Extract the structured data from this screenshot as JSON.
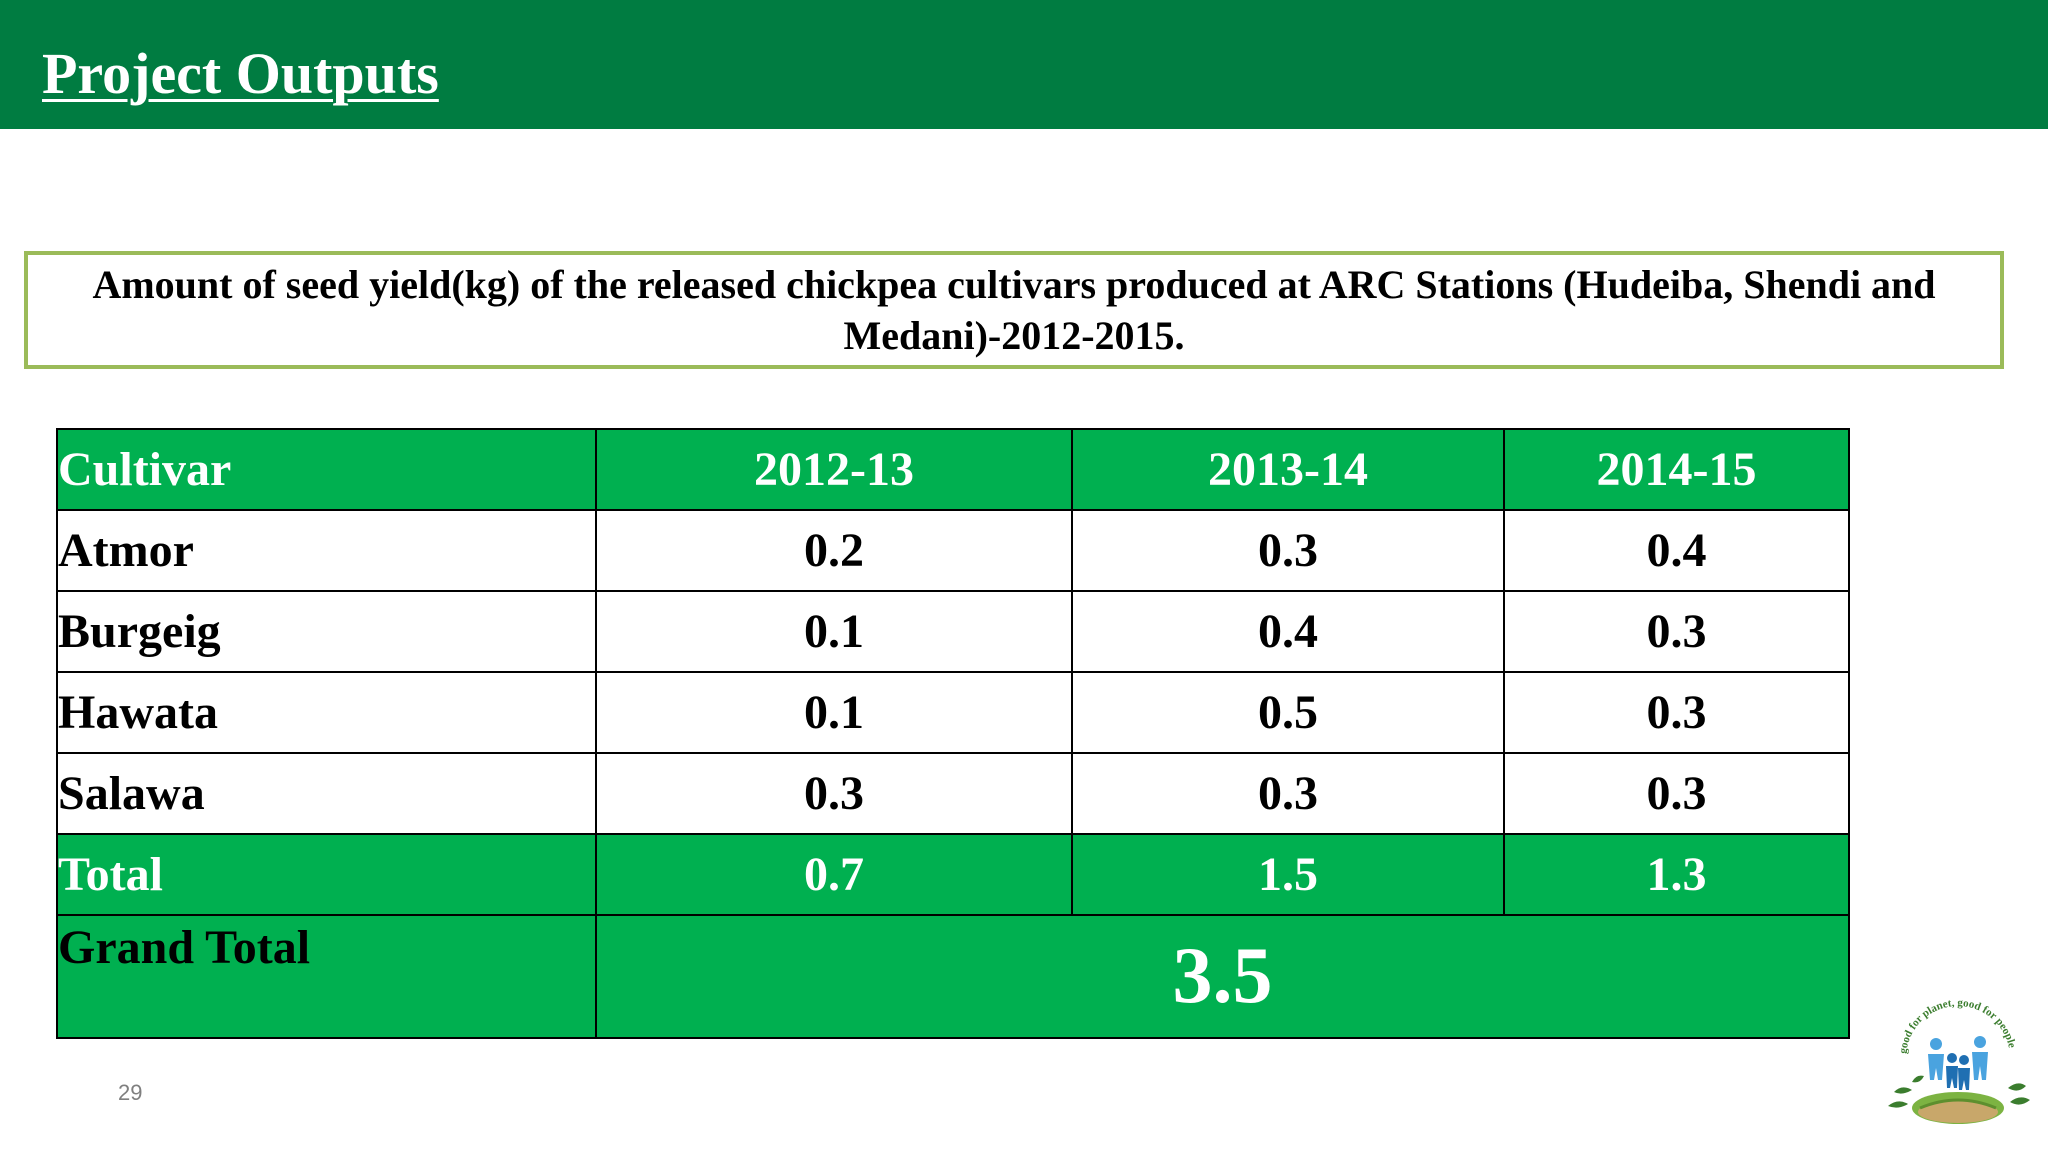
{
  "header": {
    "title": "Project Outputs"
  },
  "caption": "Amount of seed yield(kg) of the released chickpea cultivars  produced at  ARC Stations (Hudeiba, Shendi and Medani)-2012-2015.",
  "table": {
    "columns": [
      "Cultivar",
      "2012-13",
      "2013-14",
      "2014-15"
    ],
    "rows": [
      {
        "cultivar": "Atmor",
        "values": [
          "0.2",
          "0.3",
          "0.4"
        ]
      },
      {
        "cultivar": "Burgeig",
        "values": [
          "0.1",
          "0.4",
          "0.3"
        ]
      },
      {
        "cultivar": "Hawata",
        "values": [
          "0.1",
          "0.5",
          "0.3"
        ]
      },
      {
        "cultivar": "Salawa",
        "values": [
          "0.3",
          "0.3",
          "0.3"
        ]
      }
    ],
    "total": {
      "label": "Total",
      "values": [
        "0.7",
        "1.5",
        "1.3"
      ]
    },
    "grand_total": {
      "label": "Grand Total",
      "value": "3.5"
    }
  },
  "footer": {
    "page_number": "29"
  },
  "logo": {
    "icon": "people-planet-logo",
    "text": "good for planet, good for people"
  },
  "colors": {
    "header_bar": "#007c41",
    "table_green": "#00b050",
    "caption_border": "#9bbb59"
  }
}
